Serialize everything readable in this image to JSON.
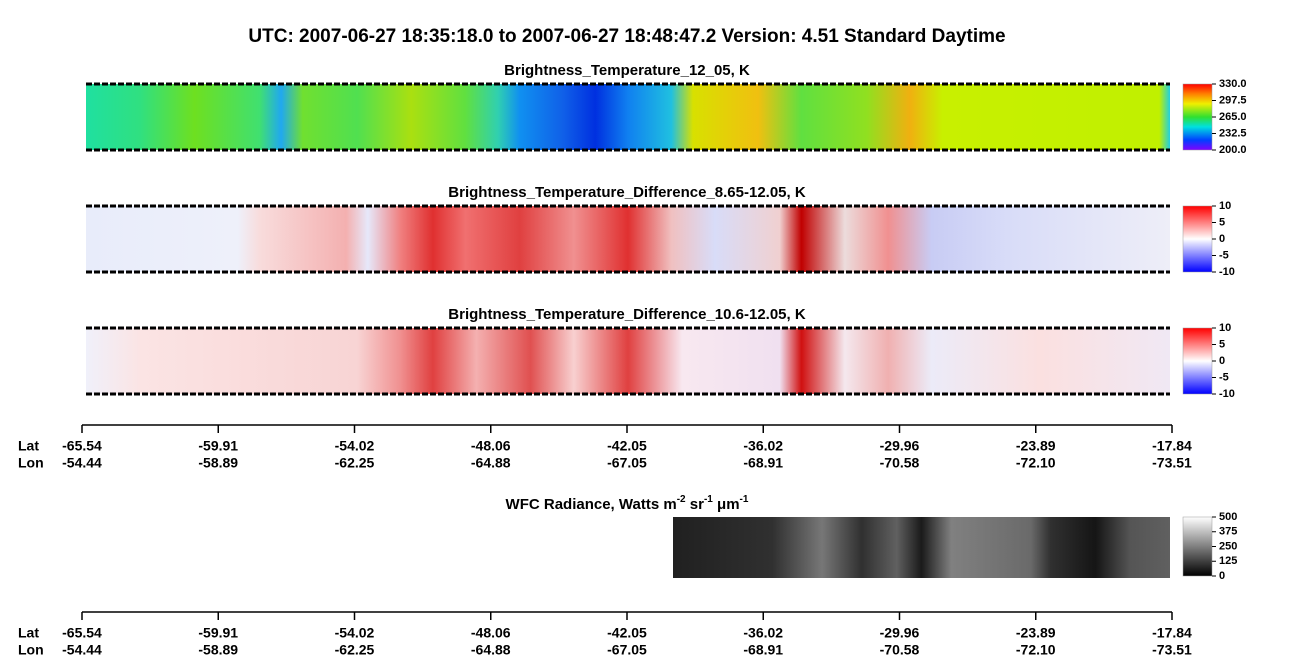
{
  "title": "UTC:  2007-06-27   18:35:18.0  to  2007-06-27   18:48:47.2    Version: 4.51  Standard Daytime",
  "panels": [
    {
      "title": "Brightness_Temperature_12_05, K",
      "colorbar": [
        "330.0",
        "297.5",
        "265.0",
        "232.5",
        "200.0"
      ]
    },
    {
      "title": "Brightness_Temperature_Difference_8.65-12.05, K",
      "colorbar": [
        "10",
        "5",
        "0",
        "-5",
        "-10"
      ]
    },
    {
      "title": "Brightness_Temperature_Difference_10.6-12.05, K",
      "colorbar": [
        "10",
        "5",
        "0",
        "-5",
        "-10"
      ]
    }
  ],
  "wfc": {
    "title_parts": [
      "WFC Radiance, Watts m",
      "-2",
      " sr",
      "-1",
      " μm",
      "-1"
    ],
    "colorbar": [
      "500",
      "375",
      "250",
      "125",
      "0"
    ]
  },
  "axes": [
    {
      "lat_label": "Lat",
      "lon_label": "Lon",
      "lat": [
        "-65.54",
        "-59.91",
        "-54.02",
        "-48.06",
        "-42.05",
        "-36.02",
        "-29.96",
        "-23.89",
        "-17.84"
      ],
      "lon": [
        "-54.44",
        "-58.89",
        "-62.25",
        "-64.88",
        "-67.05",
        "-68.91",
        "-70.58",
        "-72.10",
        "-73.51"
      ]
    },
    {
      "lat_label": "Lat",
      "lon_label": "Lon",
      "lat": [
        "-65.54",
        "-59.91",
        "-54.02",
        "-48.06",
        "-42.05",
        "-36.02",
        "-29.96",
        "-23.89",
        "-17.84"
      ],
      "lon": [
        "-54.44",
        "-58.89",
        "-62.25",
        "-64.88",
        "-67.05",
        "-68.91",
        "-70.58",
        "-72.10",
        "-73.51"
      ]
    }
  ]
}
